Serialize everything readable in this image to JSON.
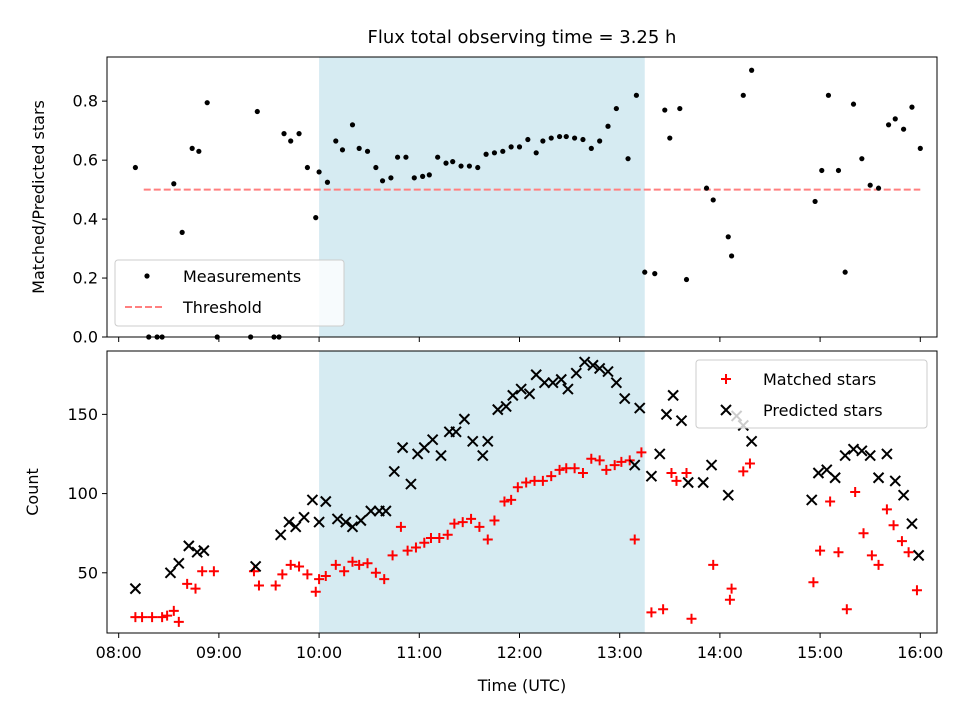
{
  "figure": {
    "title": "Flux total observing time = 3.25 h",
    "xlabel": "Time (UTC)",
    "highlight_window": {
      "start": "10:00",
      "end": "13:15"
    },
    "x_range": [
      "07:53",
      "16:10"
    ],
    "x_ticks": [
      "08:00",
      "09:00",
      "10:00",
      "11:00",
      "12:00",
      "13:00",
      "14:00",
      "15:00",
      "16:00"
    ]
  },
  "colors": {
    "highlight": "#add8e6",
    "measurements": "#000000",
    "threshold": "#ff7f7f",
    "matched": "#ff0000",
    "predicted": "#000000"
  },
  "chart_data": [
    {
      "type": "scatter",
      "ylabel": "Matched/Predicted stars",
      "ylim": [
        0,
        0.95
      ],
      "y_ticks": [
        "0.0",
        "0.2",
        "0.4",
        "0.6",
        "0.8"
      ],
      "legend_placement": "lower-left",
      "threshold": {
        "name": "Threshold",
        "value": 0.5,
        "x_range": [
          "08:15",
          "16:00"
        ]
      },
      "series": [
        {
          "name": "Measurements",
          "marker": "dot",
          "points": [
            [
              "08:10",
              0.575
            ],
            [
              "08:18",
              0.0
            ],
            [
              "08:23",
              0.0
            ],
            [
              "08:26",
              0.0
            ],
            [
              "08:33",
              0.52
            ],
            [
              "08:38",
              0.355
            ],
            [
              "08:44",
              0.64
            ],
            [
              "08:48",
              0.63
            ],
            [
              "08:53",
              0.795
            ],
            [
              "08:59",
              0.0
            ],
            [
              "09:19",
              0.0
            ],
            [
              "09:23",
              0.765
            ],
            [
              "09:33",
              0.0
            ],
            [
              "09:36",
              0.0
            ],
            [
              "09:39",
              0.69
            ],
            [
              "09:43",
              0.665
            ],
            [
              "09:48",
              0.69
            ],
            [
              "09:53",
              0.575
            ],
            [
              "09:58",
              0.405
            ],
            [
              "10:00",
              0.56
            ],
            [
              "10:05",
              0.525
            ],
            [
              "10:10",
              0.665
            ],
            [
              "10:14",
              0.635
            ],
            [
              "10:20",
              0.72
            ],
            [
              "10:24",
              0.64
            ],
            [
              "10:29",
              0.63
            ],
            [
              "10:34",
              0.575
            ],
            [
              "10:38",
              0.53
            ],
            [
              "10:43",
              0.54
            ],
            [
              "10:47",
              0.61
            ],
            [
              "10:52",
              0.61
            ],
            [
              "10:57",
              0.54
            ],
            [
              "11:02",
              0.545
            ],
            [
              "11:06",
              0.55
            ],
            [
              "11:11",
              0.61
            ],
            [
              "11:16",
              0.59
            ],
            [
              "11:20",
              0.595
            ],
            [
              "11:25",
              0.58
            ],
            [
              "11:30",
              0.58
            ],
            [
              "11:35",
              0.575
            ],
            [
              "11:40",
              0.62
            ],
            [
              "11:45",
              0.625
            ],
            [
              "11:50",
              0.63
            ],
            [
              "11:55",
              0.645
            ],
            [
              "12:00",
              0.645
            ],
            [
              "12:05",
              0.67
            ],
            [
              "12:10",
              0.625
            ],
            [
              "12:14",
              0.665
            ],
            [
              "12:19",
              0.675
            ],
            [
              "12:24",
              0.68
            ],
            [
              "12:28",
              0.68
            ],
            [
              "12:33",
              0.675
            ],
            [
              "12:38",
              0.67
            ],
            [
              "12:43",
              0.64
            ],
            [
              "12:48",
              0.665
            ],
            [
              "12:53",
              0.715
            ],
            [
              "12:58",
              0.775
            ],
            [
              "13:05",
              0.605
            ],
            [
              "13:10",
              0.82
            ],
            [
              "13:15",
              0.22
            ],
            [
              "13:21",
              0.215
            ],
            [
              "13:27",
              0.77
            ],
            [
              "13:30",
              0.675
            ],
            [
              "13:36",
              0.775
            ],
            [
              "13:40",
              0.195
            ],
            [
              "13:52",
              0.505
            ],
            [
              "13:56",
              0.465
            ],
            [
              "14:05",
              0.34
            ],
            [
              "14:07",
              0.275
            ],
            [
              "14:14",
              0.82
            ],
            [
              "14:19",
              0.905
            ],
            [
              "14:57",
              0.46
            ],
            [
              "15:01",
              0.565
            ],
            [
              "15:05",
              0.82
            ],
            [
              "15:11",
              0.565
            ],
            [
              "15:15",
              0.22
            ],
            [
              "15:20",
              0.79
            ],
            [
              "15:25",
              0.605
            ],
            [
              "15:30",
              0.515
            ],
            [
              "15:35",
              0.505
            ],
            [
              "15:41",
              0.72
            ],
            [
              "15:45",
              0.74
            ],
            [
              "15:50",
              0.705
            ],
            [
              "15:55",
              0.78
            ],
            [
              "16:00",
              0.64
            ]
          ]
        }
      ]
    },
    {
      "type": "scatter",
      "ylabel": "Count",
      "ylim": [
        12,
        190
      ],
      "y_ticks": [
        "50",
        "100",
        "150"
      ],
      "legend_placement": "top-right",
      "series": [
        {
          "name": "Matched stars",
          "marker": "plus",
          "points": [
            [
              "08:10",
              22
            ],
            [
              "08:14",
              22
            ],
            [
              "08:20",
              22
            ],
            [
              "08:26",
              22
            ],
            [
              "08:29",
              23
            ],
            [
              "08:33",
              26
            ],
            [
              "08:36",
              19
            ],
            [
              "08:41",
              43
            ],
            [
              "08:46",
              40
            ],
            [
              "08:50",
              51
            ],
            [
              "08:57",
              51
            ],
            [
              "09:21",
              51
            ],
            [
              "09:24",
              42
            ],
            [
              "09:34",
              42
            ],
            [
              "09:38",
              49
            ],
            [
              "09:43",
              55
            ],
            [
              "09:48",
              54
            ],
            [
              "09:53",
              49
            ],
            [
              "09:58",
              38
            ],
            [
              "10:00",
              46
            ],
            [
              "10:04",
              48
            ],
            [
              "10:10",
              55
            ],
            [
              "10:15",
              51
            ],
            [
              "10:20",
              57
            ],
            [
              "10:24",
              55
            ],
            [
              "10:29",
              56
            ],
            [
              "10:34",
              50
            ],
            [
              "10:39",
              46
            ],
            [
              "10:44",
              61
            ],
            [
              "10:49",
              79
            ],
            [
              "10:53",
              64
            ],
            [
              "10:58",
              66
            ],
            [
              "11:03",
              69
            ],
            [
              "11:07",
              72
            ],
            [
              "11:12",
              72
            ],
            [
              "11:17",
              74
            ],
            [
              "11:21",
              81
            ],
            [
              "11:26",
              82
            ],
            [
              "11:31",
              84
            ],
            [
              "11:36",
              79
            ],
            [
              "11:41",
              71
            ],
            [
              "11:45",
              83
            ],
            [
              "11:51",
              95
            ],
            [
              "11:55",
              96
            ],
            [
              "11:59",
              104
            ],
            [
              "12:04",
              107
            ],
            [
              "12:09",
              108
            ],
            [
              "12:14",
              108
            ],
            [
              "12:19",
              111
            ],
            [
              "12:24",
              115
            ],
            [
              "12:28",
              116
            ],
            [
              "12:33",
              116
            ],
            [
              "12:38",
              113
            ],
            [
              "12:43",
              122
            ],
            [
              "12:48",
              121
            ],
            [
              "12:52",
              115
            ],
            [
              "12:57",
              118
            ],
            [
              "13:01",
              120
            ],
            [
              "13:06",
              121
            ],
            [
              "13:09",
              71
            ],
            [
              "13:13",
              126
            ],
            [
              "13:19",
              25
            ],
            [
              "13:26",
              27
            ],
            [
              "13:31",
              113
            ],
            [
              "13:34",
              108
            ],
            [
              "13:40",
              113
            ],
            [
              "13:43",
              21
            ],
            [
              "13:56",
              55
            ],
            [
              "14:06",
              33
            ],
            [
              "14:07",
              40
            ],
            [
              "14:14",
              114
            ],
            [
              "14:18",
              119
            ],
            [
              "14:56",
              44
            ],
            [
              "15:00",
              64
            ],
            [
              "15:06",
              95
            ],
            [
              "15:11",
              63
            ],
            [
              "15:16",
              27
            ],
            [
              "15:21",
              101
            ],
            [
              "15:26",
              75
            ],
            [
              "15:31",
              61
            ],
            [
              "15:35",
              55
            ],
            [
              "15:40",
              90
            ],
            [
              "15:44",
              80
            ],
            [
              "15:49",
              70
            ],
            [
              "15:53",
              63
            ],
            [
              "15:58",
              39
            ]
          ]
        },
        {
          "name": "Predicted stars",
          "marker": "x",
          "points": [
            [
              "08:10",
              40
            ],
            [
              "08:31",
              50
            ],
            [
              "08:36",
              56
            ],
            [
              "08:42",
              67
            ],
            [
              "08:47",
              63
            ],
            [
              "08:51",
              64
            ],
            [
              "09:22",
              54
            ],
            [
              "09:37",
              74
            ],
            [
              "09:42",
              82
            ],
            [
              "09:46",
              79
            ],
            [
              "09:51",
              85
            ],
            [
              "09:56",
              96
            ],
            [
              "10:00",
              82
            ],
            [
              "10:04",
              95
            ],
            [
              "10:11",
              84
            ],
            [
              "10:16",
              82
            ],
            [
              "10:20",
              79
            ],
            [
              "10:25",
              83
            ],
            [
              "10:31",
              89
            ],
            [
              "10:36",
              89
            ],
            [
              "10:40",
              89
            ],
            [
              "10:45",
              114
            ],
            [
              "10:50",
              129
            ],
            [
              "10:55",
              106
            ],
            [
              "10:59",
              125
            ],
            [
              "11:03",
              129
            ],
            [
              "11:08",
              134
            ],
            [
              "11:13",
              124
            ],
            [
              "11:18",
              139
            ],
            [
              "11:22",
              139
            ],
            [
              "11:27",
              147
            ],
            [
              "11:32",
              133
            ],
            [
              "11:38",
              124
            ],
            [
              "11:41",
              133
            ],
            [
              "11:47",
              153
            ],
            [
              "11:52",
              155
            ],
            [
              "11:56",
              162
            ],
            [
              "12:01",
              166
            ],
            [
              "12:06",
              163
            ],
            [
              "12:10",
              175
            ],
            [
              "12:15",
              170
            ],
            [
              "12:20",
              170
            ],
            [
              "12:25",
              172
            ],
            [
              "12:29",
              166
            ],
            [
              "12:34",
              176
            ],
            [
              "12:39",
              183
            ],
            [
              "12:44",
              181
            ],
            [
              "12:48",
              179
            ],
            [
              "12:53",
              177
            ],
            [
              "12:58",
              170
            ],
            [
              "13:03",
              160
            ],
            [
              "13:09",
              118
            ],
            [
              "13:12",
              154
            ],
            [
              "13:19",
              111
            ],
            [
              "13:24",
              125
            ],
            [
              "13:28",
              150
            ],
            [
              "13:32",
              162
            ],
            [
              "13:37",
              146
            ],
            [
              "13:41",
              107
            ],
            [
              "13:50",
              107
            ],
            [
              "13:55",
              118
            ],
            [
              "14:05",
              99
            ],
            [
              "14:10",
              149
            ],
            [
              "14:14",
              143
            ],
            [
              "14:19",
              133
            ],
            [
              "14:55",
              96
            ],
            [
              "14:59",
              113
            ],
            [
              "15:04",
              115
            ],
            [
              "15:09",
              110
            ],
            [
              "15:15",
              124
            ],
            [
              "15:20",
              128
            ],
            [
              "15:25",
              127
            ],
            [
              "15:30",
              124
            ],
            [
              "15:35",
              110
            ],
            [
              "15:40",
              125
            ],
            [
              "15:45",
              108
            ],
            [
              "15:50",
              99
            ],
            [
              "15:55",
              81
            ],
            [
              "15:59",
              61
            ]
          ]
        }
      ]
    }
  ]
}
